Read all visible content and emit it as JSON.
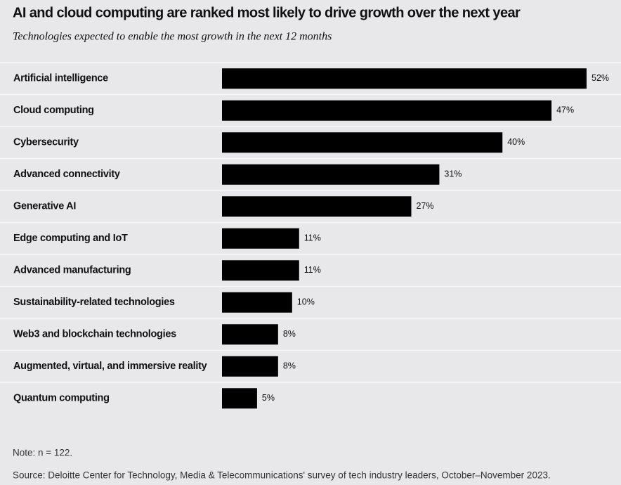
{
  "chart_data": {
    "type": "hbar",
    "title": "AI and cloud computing are ranked most likely to drive growth over the next year",
    "subtitle": "Technologies expected to enable the most growth in the next 12 months",
    "categories": [
      "Artificial intelligence",
      "Cloud computing",
      "Cybersecurity",
      "Advanced connectivity",
      "Generative AI",
      "Edge computing and IoT",
      "Advanced manufacturing",
      "Sustainability-related technologies",
      "Web3 and blockchain technologies",
      "Augmented, virtual, and immersive reality",
      "Quantum computing"
    ],
    "values": [
      52,
      47,
      40,
      31,
      27,
      11,
      11,
      10,
      8,
      8,
      5
    ],
    "value_labels": [
      "52%",
      "47%",
      "40%",
      "31%",
      "27%",
      "11%",
      "11%",
      "10%",
      "8%",
      "8%",
      "5%"
    ],
    "color": "#000000"
  },
  "note": "Note: n = 122.",
  "source": "Source: Deloitte Center for Technology, Media & Telecommunications' survey of tech industry leaders, October–November 2023."
}
